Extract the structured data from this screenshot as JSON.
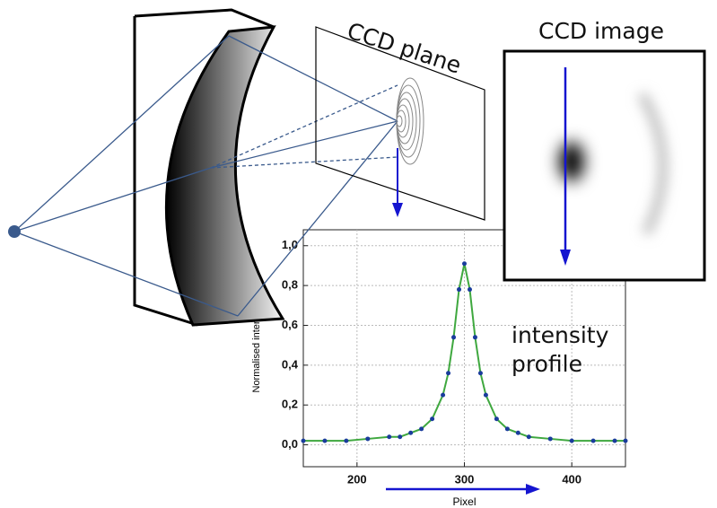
{
  "labels": {
    "ccd_plane": "CCD plane",
    "ccd_image": "CCD image",
    "profile": [
      "intensity",
      "profile"
    ]
  },
  "chart_data": {
    "type": "scatter",
    "xlabel": "Pixel",
    "ylabel": "Normalised intensity",
    "x": [
      150,
      170,
      190,
      210,
      230,
      240,
      250,
      260,
      270,
      280,
      285,
      290,
      295,
      300,
      305,
      310,
      315,
      320,
      330,
      340,
      350,
      360,
      380,
      400,
      420,
      440,
      450
    ],
    "series": [
      {
        "color": "#1a3c9c",
        "line_color": "#3fa83f",
        "values": [
          0.02,
          0.02,
          0.02,
          0.03,
          0.04,
          0.04,
          0.06,
          0.08,
          0.13,
          0.25,
          0.36,
          0.54,
          0.78,
          0.91,
          0.78,
          0.54,
          0.36,
          0.25,
          0.13,
          0.08,
          0.06,
          0.04,
          0.03,
          0.02,
          0.02,
          0.02,
          0.02
        ]
      }
    ],
    "xlim": [
      150,
      450
    ],
    "ylim": [
      -0.11,
      1.08
    ],
    "xticks": [
      200,
      300,
      400
    ],
    "yticks": [
      {
        "value": 0,
        "label": "0,0"
      },
      {
        "value": 0.2,
        "label": "0,2"
      },
      {
        "value": 0.4,
        "label": "0,4"
      },
      {
        "value": 0.6,
        "label": "0,6"
      },
      {
        "value": 0.8,
        "label": "0,8"
      },
      {
        "value": 1.0,
        "label": "1,0"
      }
    ],
    "grid": true
  }
}
